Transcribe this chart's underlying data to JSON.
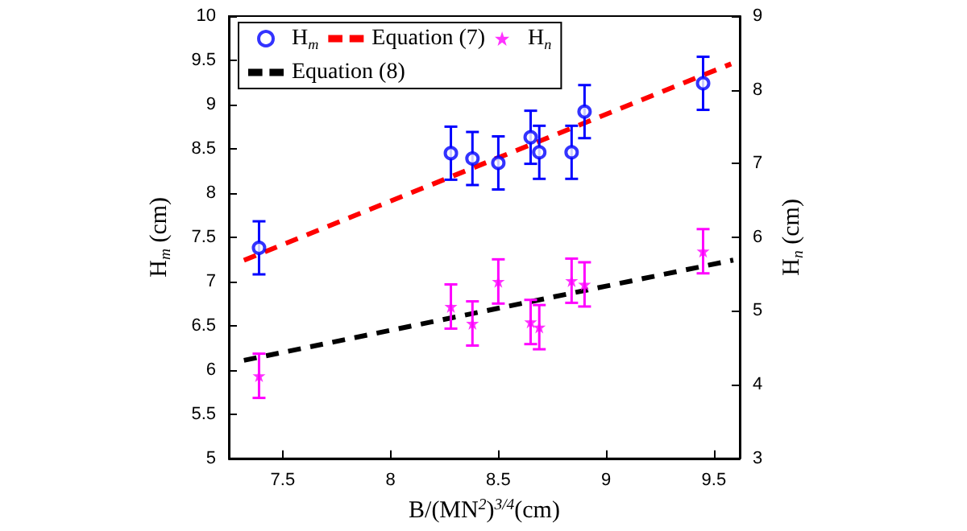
{
  "chart_data": {
    "type": "scatter",
    "xlabel": "B/(MN$^{2}$)$^{3/4}$(cm)",
    "ylabel": "H$_{m}$ (cm)",
    "y2label": "H$_{n}$ (cm)",
    "xlim": [
      7.25,
      9.62
    ],
    "xticks": [
      7.5,
      8,
      8.5,
      9,
      9.5
    ],
    "ylim": [
      5,
      10
    ],
    "yticks": [
      5,
      5.5,
      6,
      6.5,
      7,
      7.5,
      8,
      8.5,
      9,
      9.5,
      10
    ],
    "y2lim": [
      3,
      9
    ],
    "y2ticks": [
      3,
      4,
      5,
      6,
      7,
      8,
      9
    ],
    "legend": "top left",
    "series": [
      {
        "name": "H$_{m}$",
        "marker": "circle",
        "color": "#0000ff",
        "x": [
          7.39,
          8.28,
          8.38,
          8.5,
          8.65,
          8.69,
          8.84,
          8.9,
          9.45
        ],
        "values": [
          7.38,
          8.45,
          8.39,
          8.34,
          8.63,
          8.46,
          8.46,
          8.92,
          9.24
        ],
        "errors": [
          0.3,
          0.3,
          0.3,
          0.3,
          0.3,
          0.3,
          0.3,
          0.3,
          0.3
        ]
      },
      {
        "name": "Equation (7)",
        "type": "line",
        "marker": "none",
        "line_style": "dashed",
        "color": "#ff0000",
        "x": [
          7.32,
          9.58
        ],
        "values": [
          7.24,
          9.46
        ]
      },
      {
        "name": "H$_{n}$",
        "axis": "y2",
        "marker": "star",
        "color": "#ff00ff",
        "x": [
          7.39,
          8.28,
          8.38,
          8.5,
          8.65,
          8.69,
          8.84,
          8.9,
          9.45
        ],
        "values": [
          4.12,
          5.06,
          4.83,
          5.4,
          4.85,
          4.78,
          5.41,
          5.36,
          5.81
        ],
        "errors": [
          0.3,
          0.3,
          0.3,
          0.3,
          0.3,
          0.3,
          0.3,
          0.3,
          0.3
        ]
      },
      {
        "name": "Equation (8)",
        "type": "line",
        "axis": "y2",
        "marker": "none",
        "line_style": "dashed",
        "color": "#000000",
        "x": [
          7.32,
          9.59
        ],
        "values": [
          4.33,
          5.69
        ]
      }
    ]
  }
}
